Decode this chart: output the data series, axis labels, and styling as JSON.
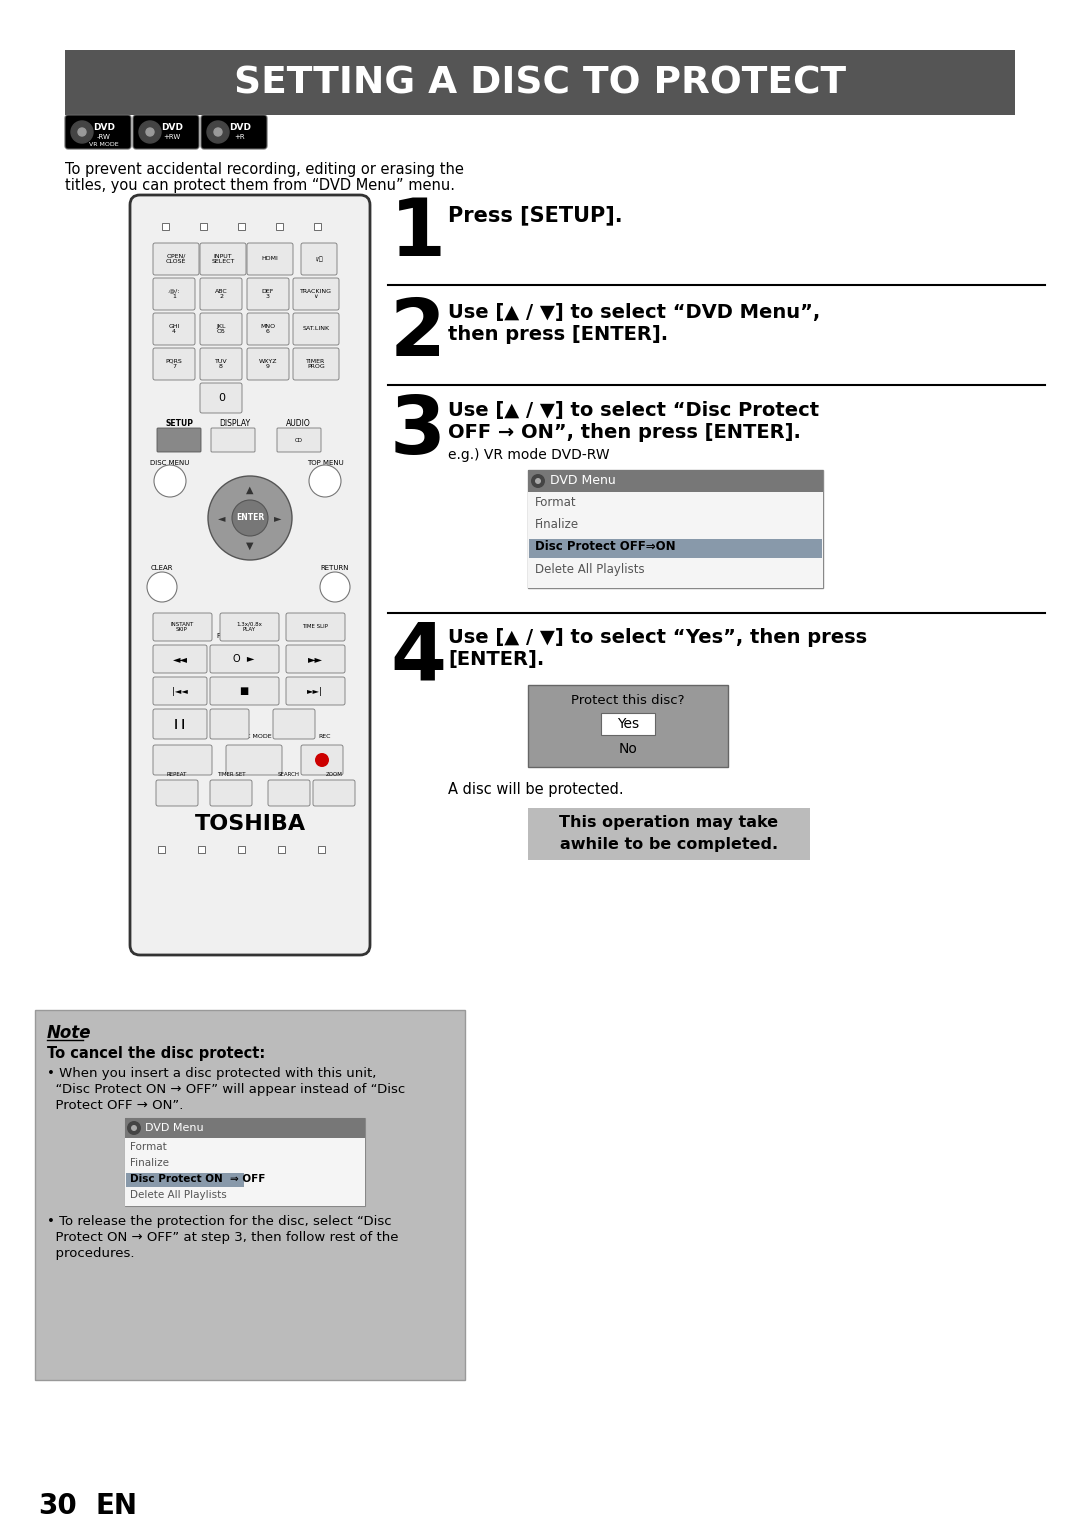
{
  "title": "SETTING A DISC TO PROTECT",
  "title_bg": "#555555",
  "title_fg": "#ffffff",
  "page_bg": "#ffffff",
  "step1_text": "Press [SETUP].",
  "step2_line1": "Use [▲ / ▼] to select “DVD Menu”,",
  "step2_line2": "then press [ENTER].",
  "step3_line1": "Use [▲ / ▼] to select “Disc Protect",
  "step3_line2": "OFF → ON”, then press [ENTER].",
  "step3_sub": "e.g.) VR mode DVD-RW",
  "step4_line1": "Use [▲ / ▼] to select “Yes”, then press",
  "step4_line2": "[ENTER].",
  "step4_sub": "A disc will be protected.",
  "note_title": "Note",
  "note_bold": "To cancel the disc protect:",
  "note_line1": "• When you insert a disc protected with this unit,",
  "note_line2": "  “Disc Protect ON → OFF” will appear instead of “Disc",
  "note_line3": "  Protect OFF → ON”.",
  "note_line4": "• To release the protection for the disc, select “Disc",
  "note_line5": "  Protect ON → OFF” at step 3, then follow rest of the",
  "note_line6": "  procedures.",
  "page_num": "30",
  "page_en": "EN",
  "dvd_menu_items": [
    "Format",
    "Finalize",
    "Disc Protect OFF⇒ON",
    "Delete All Playlists"
  ],
  "dvd_menu_highlight": 2,
  "protect_dialog_title": "Protect this disc?",
  "protect_yes": "Yes",
  "protect_no": "No",
  "warn_line1": "This operation may take",
  "warn_line2": "awhile to be completed.",
  "note_dvd_items": [
    "Format",
    "Finalize",
    "Disc Protect ON  ⇒ OFF",
    "Delete All Playlists"
  ],
  "note_dvd_highlight": 2,
  "intro1": "To prevent accidental recording, editing or erasing the",
  "intro2": "titles, you can protect them from “DVD Menu” menu."
}
